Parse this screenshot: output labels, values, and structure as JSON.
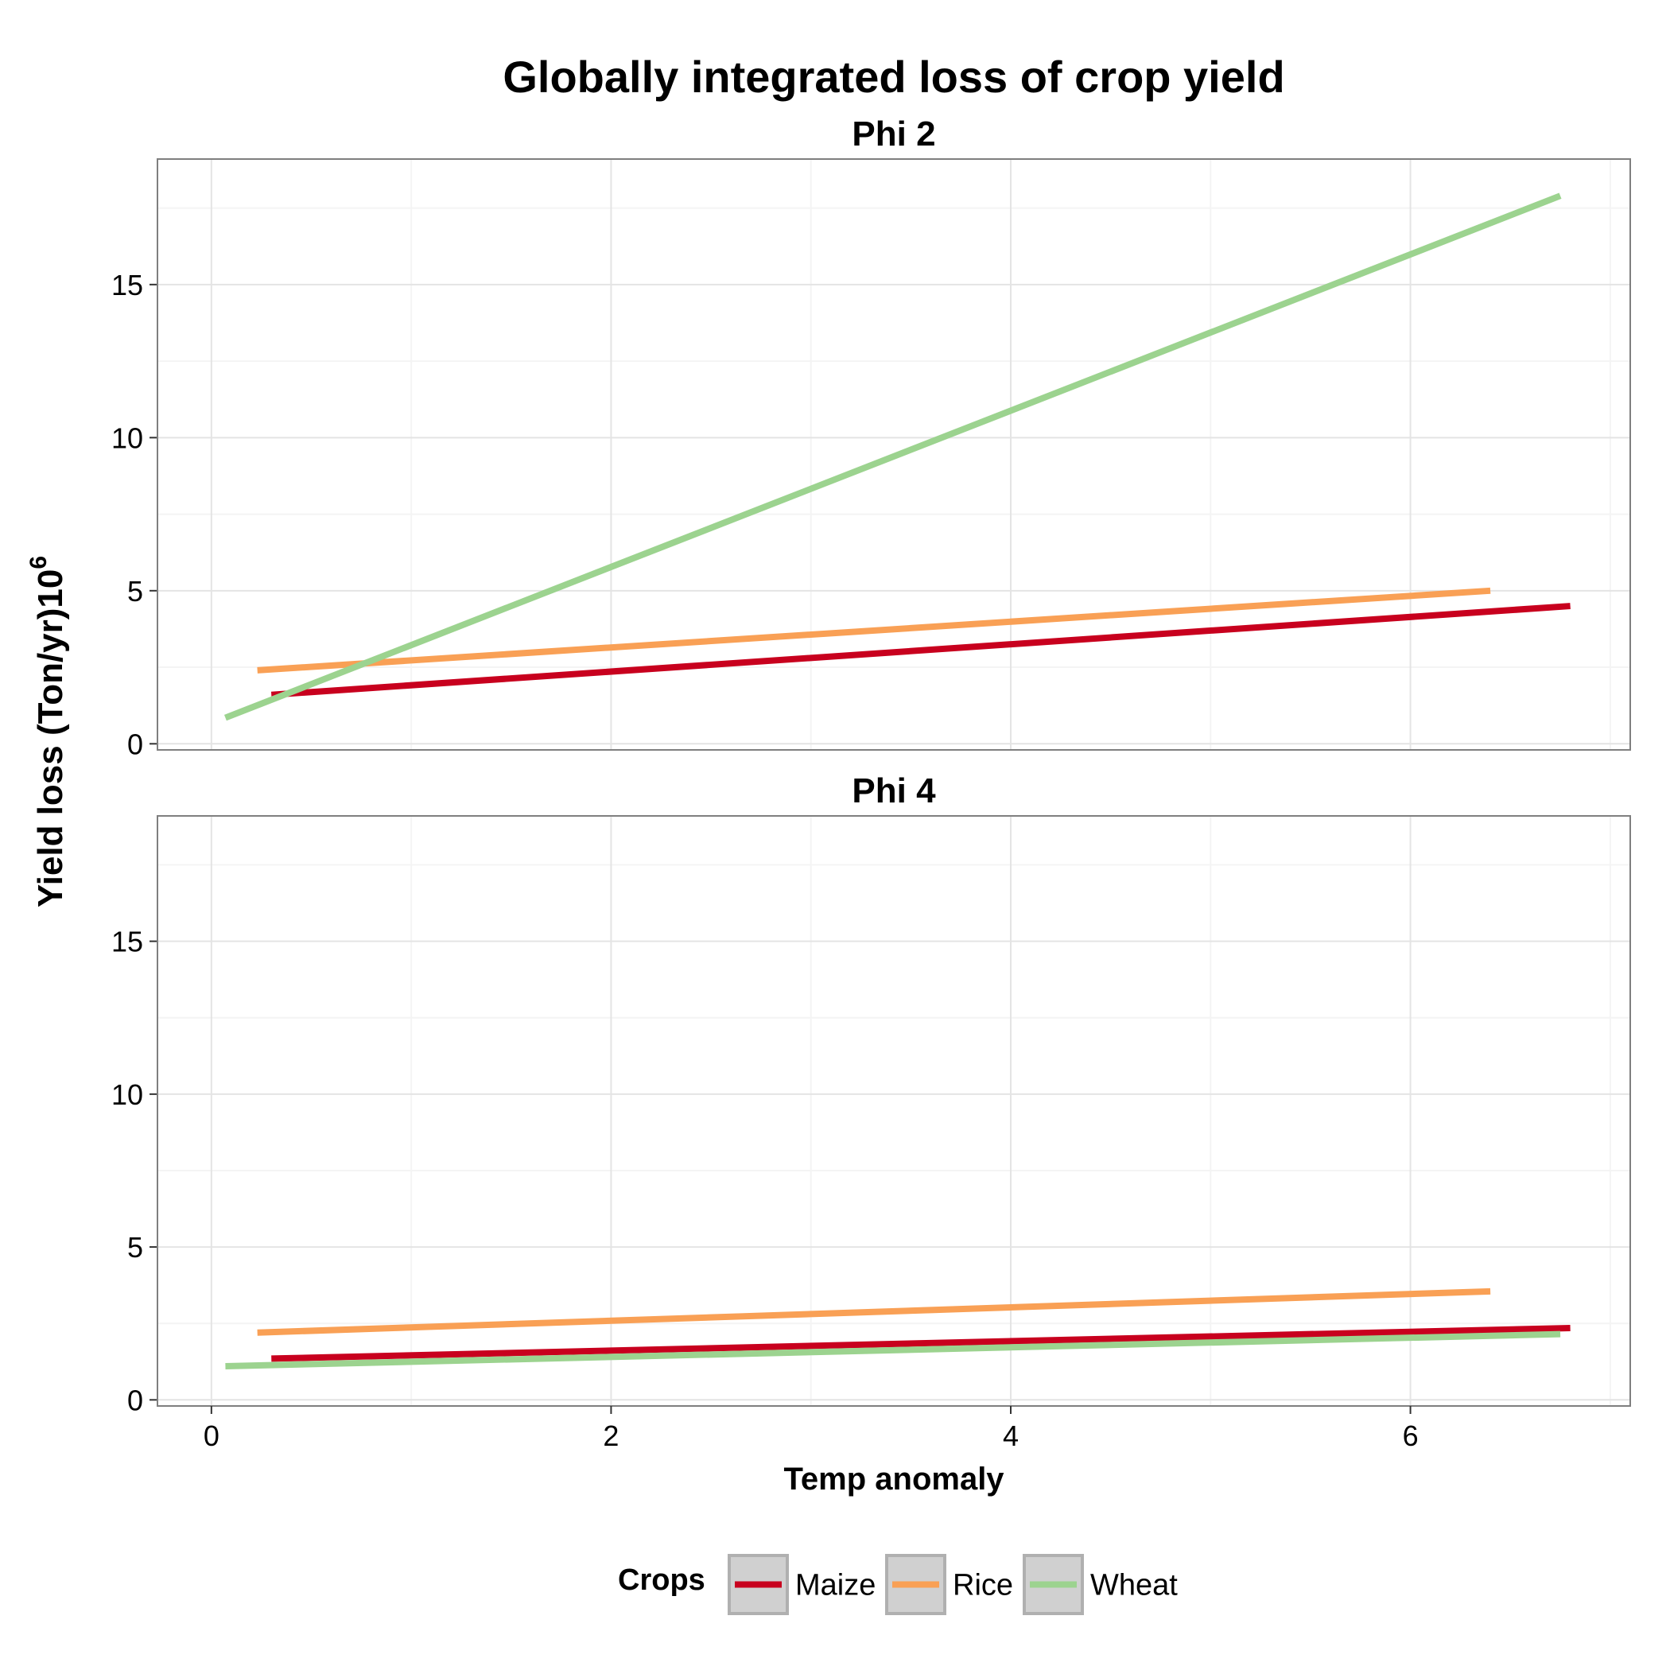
{
  "chart_data": {
    "type": "line",
    "title": "Globally integrated loss of crop yield",
    "xlabel": "Temp anomaly",
    "ylabel_main": "Yield loss  (Ton/yr)10",
    "ylabel_sup": "6",
    "xlim": [
      -0.27,
      7.1
    ],
    "ylim": [
      -0.2,
      19.1
    ],
    "x_ticks": [
      0,
      2,
      4,
      6
    ],
    "y_ticks": [
      0,
      5,
      10,
      15
    ],
    "grid": true,
    "legend": {
      "title": "Crops",
      "position": "bottom",
      "entries": [
        "Maize",
        "Rice",
        "Wheat"
      ]
    },
    "colors": {
      "Maize": "#c8001e",
      "Rice": "#f9a055",
      "Wheat": "#9cd38f"
    },
    "facets": [
      {
        "label": "Phi 2",
        "series": [
          {
            "name": "Maize",
            "x": [
              0.3,
              6.8
            ],
            "y": [
              1.6,
              4.5
            ]
          },
          {
            "name": "Rice",
            "x": [
              0.23,
              6.4
            ],
            "y": [
              2.4,
              5.0
            ]
          },
          {
            "name": "Wheat",
            "x": [
              0.07,
              6.75
            ],
            "y": [
              0.85,
              17.9
            ]
          }
        ]
      },
      {
        "label": "Phi 4",
        "series": [
          {
            "name": "Maize",
            "x": [
              0.3,
              6.8
            ],
            "y": [
              1.35,
              2.35
            ]
          },
          {
            "name": "Rice",
            "x": [
              0.23,
              6.4
            ],
            "y": [
              2.2,
              3.55
            ]
          },
          {
            "name": "Wheat",
            "x": [
              0.07,
              6.75
            ],
            "y": [
              1.1,
              2.15
            ]
          }
        ]
      }
    ]
  }
}
